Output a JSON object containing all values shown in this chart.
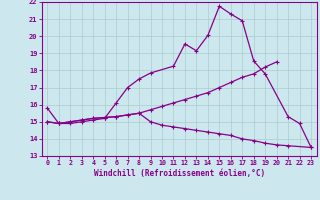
{
  "xlabel": "Windchill (Refroidissement éolien,°C)",
  "xlim": [
    -0.5,
    23.5
  ],
  "ylim": [
    13,
    22
  ],
  "xticks": [
    0,
    1,
    2,
    3,
    4,
    5,
    6,
    7,
    8,
    9,
    10,
    11,
    12,
    13,
    14,
    15,
    16,
    17,
    18,
    19,
    20,
    21,
    22,
    23
  ],
  "yticks": [
    13,
    14,
    15,
    16,
    17,
    18,
    19,
    20,
    21,
    22
  ],
  "bg_color": "#cce8ee",
  "line_color": "#880088",
  "grid_color": "#aacccc",
  "line1_y": [
    15.8,
    14.9,
    14.9,
    15.0,
    15.1,
    15.2,
    16.1,
    17.0,
    17.5,
    17.85,
    18.25,
    19.55,
    19.15,
    20.05,
    21.75,
    21.3,
    20.9,
    18.55,
    17.8,
    15.3,
    14.9,
    13.5
  ],
  "line1_x": [
    0,
    1,
    2,
    3,
    4,
    5,
    6,
    7,
    8,
    9,
    11,
    12,
    13,
    14,
    15,
    16,
    17,
    18,
    19,
    21,
    22,
    23
  ],
  "line2_y": [
    15.0,
    14.9,
    15.0,
    15.1,
    15.2,
    15.25,
    15.3,
    15.4,
    15.5,
    15.7,
    15.9,
    16.1,
    16.3,
    16.5,
    16.7,
    17.0,
    17.3,
    17.6,
    17.8,
    18.2,
    18.5
  ],
  "line2_x": [
    0,
    1,
    2,
    3,
    4,
    5,
    6,
    7,
    8,
    9,
    10,
    11,
    12,
    13,
    14,
    15,
    16,
    17,
    18,
    19,
    20
  ],
  "line3_y": [
    15.0,
    14.9,
    15.0,
    15.1,
    15.2,
    15.25,
    15.3,
    15.4,
    15.5,
    15.0,
    14.8,
    14.7,
    14.6,
    14.5,
    14.4,
    14.3,
    14.2,
    14.0,
    13.9,
    13.75,
    13.65,
    13.6,
    13.5
  ],
  "line3_x": [
    0,
    1,
    2,
    3,
    4,
    5,
    6,
    7,
    8,
    9,
    10,
    11,
    12,
    13,
    14,
    15,
    16,
    17,
    18,
    19,
    20,
    21,
    23
  ]
}
